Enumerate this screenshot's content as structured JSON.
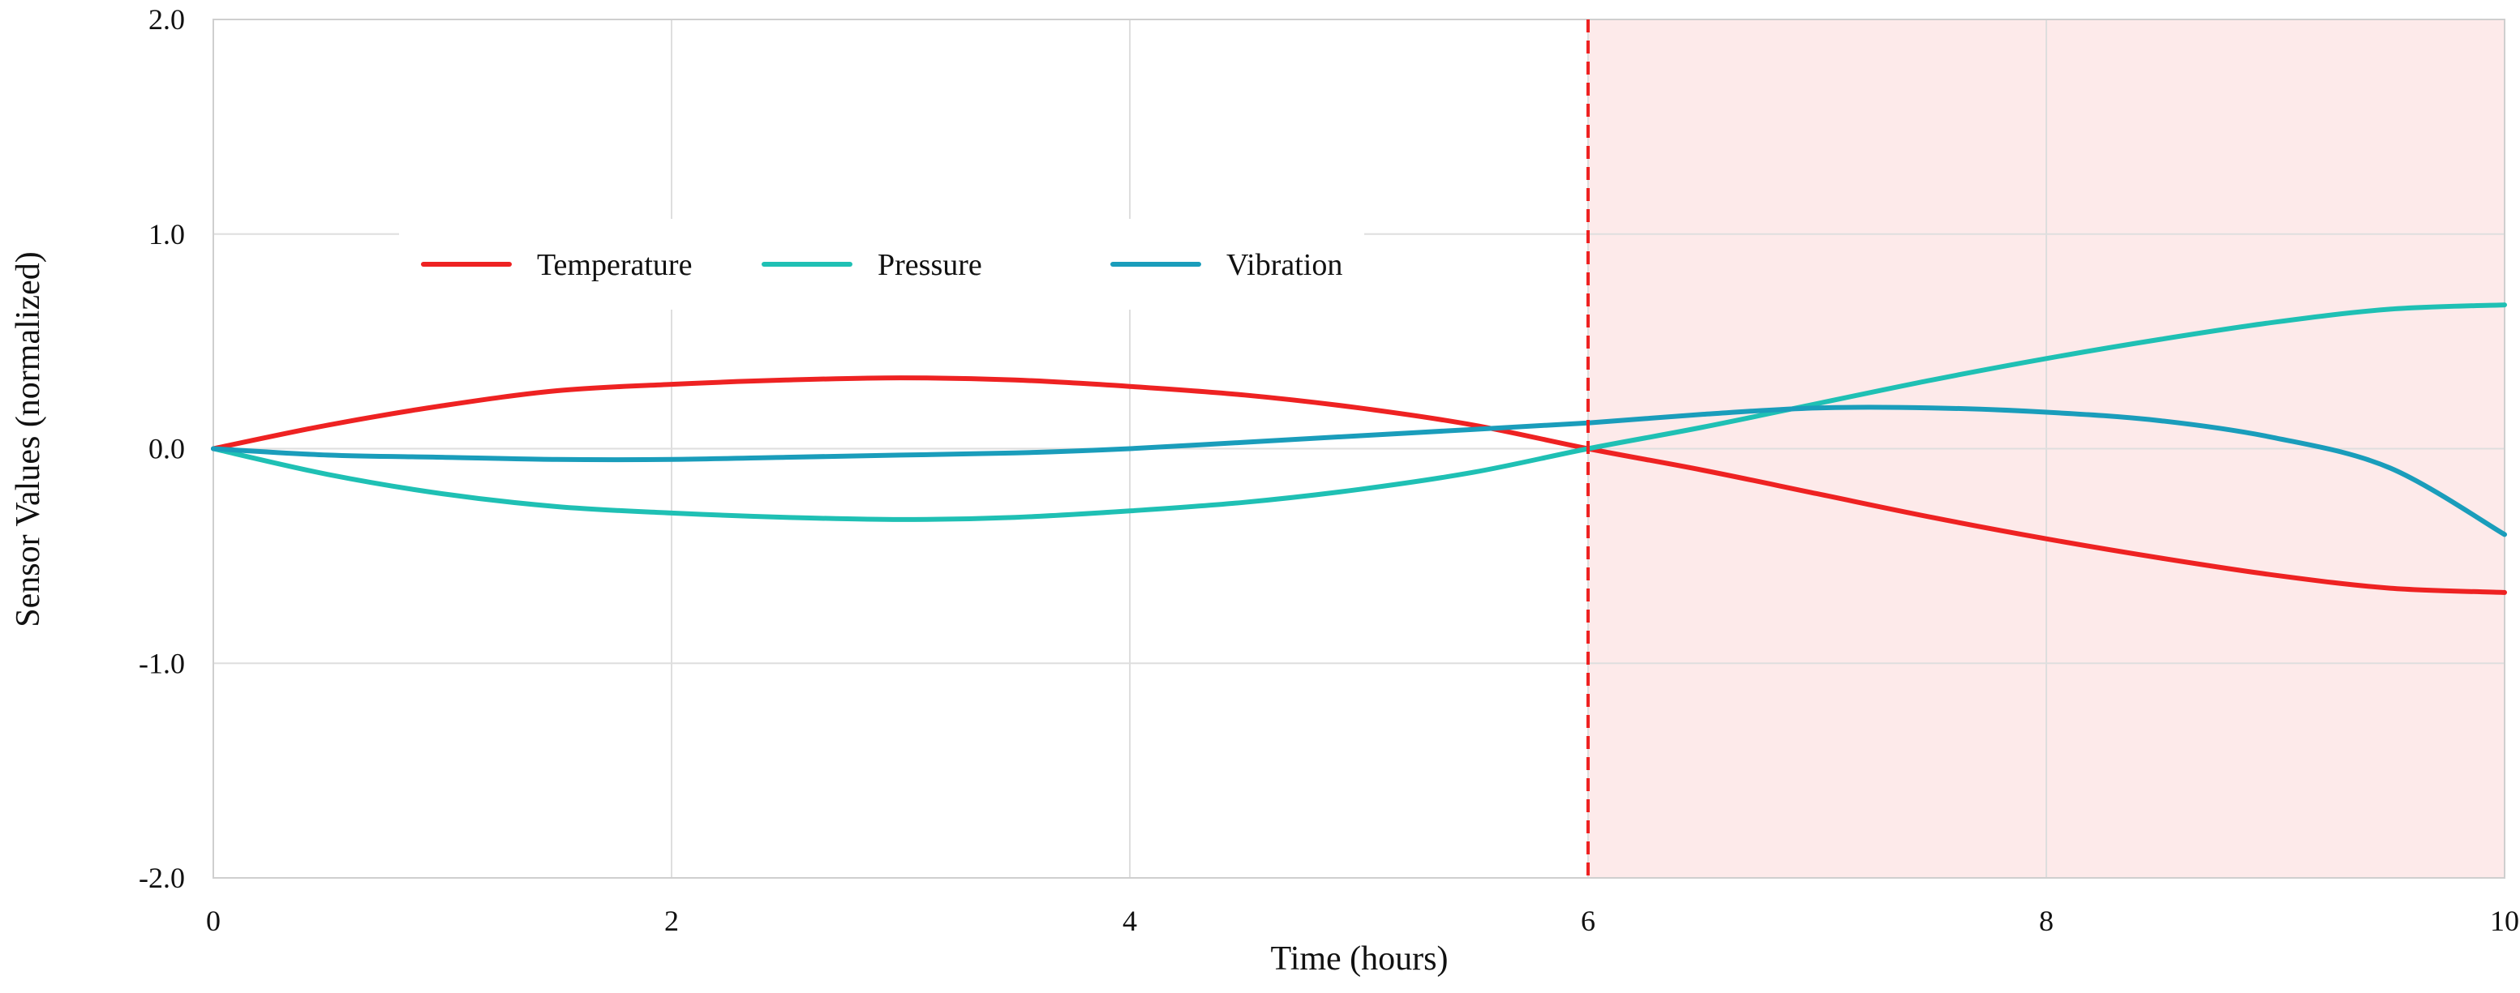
{
  "chart_data": {
    "type": "line",
    "title": "",
    "xlabel": "Time (hours)",
    "ylabel": "Sensor Values (normalized)",
    "xlim": [
      0,
      10
    ],
    "ylim": [
      -2.0,
      2.0
    ],
    "x_ticks": [
      0,
      2,
      4,
      6,
      8,
      10
    ],
    "x_tick_labels": [
      "0",
      "2",
      "4",
      "6",
      "8",
      "10"
    ],
    "y_ticks": [
      2.0,
      1.0,
      0.0,
      -1.0,
      -2.0
    ],
    "y_tick_labels": [
      "2.0",
      "1.0",
      "0.0",
      "-1.0",
      "-2.0"
    ],
    "grid": true,
    "legend_position": "upper-left",
    "x": [
      0,
      0.5,
      1,
      1.5,
      2,
      2.5,
      3,
      3.5,
      4,
      4.5,
      5,
      5.5,
      6,
      6.5,
      7,
      7.5,
      8,
      8.5,
      9,
      9.5,
      10
    ],
    "series": [
      {
        "name": "Temperature",
        "color": "#ee2222",
        "values": [
          0.0,
          0.11,
          0.2,
          0.27,
          0.3,
          0.32,
          0.33,
          0.32,
          0.29,
          0.25,
          0.19,
          0.11,
          0.0,
          -0.1,
          -0.21,
          -0.32,
          -0.42,
          -0.51,
          -0.59,
          -0.65,
          -0.67
        ]
      },
      {
        "name": "Pressure",
        "color": "#1fc0b4",
        "values": [
          0.0,
          -0.12,
          -0.21,
          -0.27,
          -0.3,
          -0.32,
          -0.33,
          -0.32,
          -0.29,
          -0.25,
          -0.19,
          -0.11,
          0.0,
          0.1,
          0.21,
          0.32,
          0.42,
          0.51,
          0.59,
          0.65,
          0.67
        ]
      },
      {
        "name": "Vibration",
        "color": "#1a9dbb",
        "values": [
          0.0,
          -0.03,
          -0.04,
          -0.05,
          -0.05,
          -0.04,
          -0.03,
          -0.02,
          0.0,
          0.03,
          0.06,
          0.09,
          0.12,
          0.16,
          0.19,
          0.19,
          0.17,
          0.13,
          0.05,
          -0.09,
          -0.4
        ]
      }
    ],
    "annotations": [
      {
        "type": "vertical-dashed-line",
        "x": 6,
        "color": "#ee2222"
      },
      {
        "type": "shaded-region",
        "x_start": 6,
        "x_end": 10,
        "color": "#fdeaea"
      }
    ]
  }
}
